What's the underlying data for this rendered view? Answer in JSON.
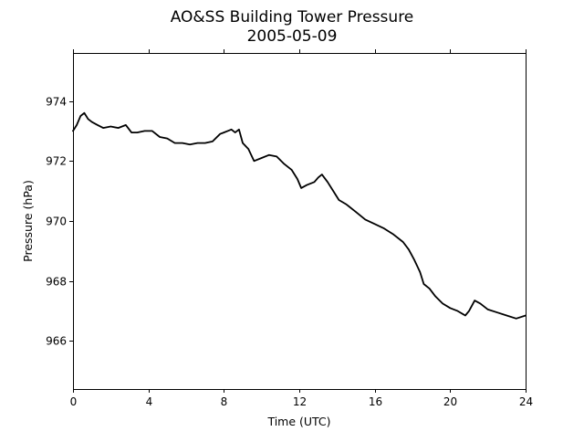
{
  "chart_data": {
    "type": "line",
    "title": "AO&SS Building Tower Pressure",
    "subtitle": "2005-05-09",
    "xlabel": "Time (UTC)",
    "ylabel": "Pressure (hPa)",
    "xlim": [
      0,
      24
    ],
    "ylim": [
      964.4,
      975.6
    ],
    "x_ticks": [
      0,
      4,
      8,
      12,
      16,
      20,
      24
    ],
    "y_ticks": [
      966,
      968,
      970,
      972,
      974
    ],
    "grid": false,
    "series": [
      {
        "color": "#000000",
        "x": [
          0,
          0.2,
          0.4,
          0.6,
          0.8,
          1.0,
          1.3,
          1.6,
          2.0,
          2.4,
          2.8,
          3.1,
          3.4,
          3.8,
          4.2,
          4.6,
          5.0,
          5.4,
          5.8,
          6.2,
          6.6,
          7.0,
          7.4,
          7.8,
          8.0,
          8.2,
          8.4,
          8.6,
          8.8,
          9.0,
          9.3,
          9.6,
          10.0,
          10.4,
          10.8,
          11.2,
          11.6,
          11.9,
          12.1,
          12.4,
          12.8,
          13.0,
          13.2,
          13.5,
          13.8,
          14.1,
          14.5,
          15.0,
          15.5,
          16.0,
          16.5,
          17.0,
          17.5,
          17.8,
          18.1,
          18.4,
          18.6,
          18.9,
          19.2,
          19.6,
          20.0,
          20.4,
          20.8,
          21.0,
          21.3,
          21.6,
          22.0,
          22.5,
          23.0,
          23.5,
          24.0
        ],
        "y": [
          973.0,
          973.2,
          973.5,
          973.6,
          973.4,
          973.3,
          973.2,
          973.1,
          973.15,
          973.1,
          973.2,
          972.95,
          972.95,
          973.0,
          973.0,
          972.8,
          972.75,
          972.6,
          972.6,
          972.55,
          972.6,
          972.6,
          972.65,
          972.9,
          972.95,
          973.0,
          973.05,
          972.95,
          973.05,
          972.6,
          972.4,
          972.0,
          972.1,
          972.2,
          972.15,
          971.9,
          971.7,
          971.4,
          971.1,
          971.2,
          971.3,
          971.45,
          971.55,
          971.3,
          971.0,
          970.7,
          970.55,
          970.3,
          970.05,
          969.9,
          969.75,
          969.55,
          969.3,
          969.05,
          968.7,
          968.3,
          967.9,
          967.75,
          967.5,
          967.25,
          967.1,
          967.0,
          966.85,
          967.0,
          967.35,
          967.25,
          967.05,
          966.95,
          966.85,
          966.75,
          966.85
        ]
      }
    ]
  }
}
